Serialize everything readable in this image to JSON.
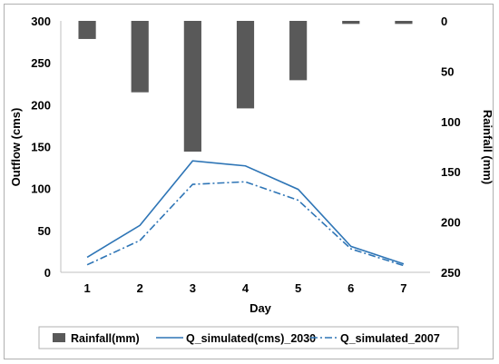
{
  "chart_data": {
    "type": "bar",
    "categories": [
      "1",
      "2",
      "3",
      "4",
      "5",
      "6",
      "7"
    ],
    "series": [
      {
        "name": "Rainfall(mm)",
        "type": "bar",
        "axis": "right",
        "values": [
          18,
          71,
          130,
          87,
          59,
          3,
          3
        ]
      },
      {
        "name": "Q_simulated(cms)_2030",
        "type": "line",
        "axis": "left",
        "style": "solid",
        "values": [
          18,
          56,
          133,
          127,
          99,
          31,
          10
        ]
      },
      {
        "name": "Q_simulated_2007",
        "type": "line",
        "axis": "left",
        "style": "dash-dot",
        "values": [
          9,
          38,
          105,
          108,
          86,
          28,
          8
        ]
      }
    ],
    "xlabel": "Day",
    "ylabel": "Outflow (cms)",
    "y2label": "Rainfall (mm)",
    "ylim": [
      0,
      300
    ],
    "y2lim": [
      0,
      250
    ],
    "y2_inverted": true,
    "yticks": [
      "0",
      "50",
      "100",
      "150",
      "200",
      "250",
      "300"
    ],
    "y2ticks": [
      "0",
      "50",
      "100",
      "150",
      "200",
      "250"
    ],
    "grid": false,
    "legend_position": "bottom",
    "colors": {
      "bar": "#595959",
      "line2030": "#2e75b6",
      "line2007": "#2e75b6"
    }
  }
}
